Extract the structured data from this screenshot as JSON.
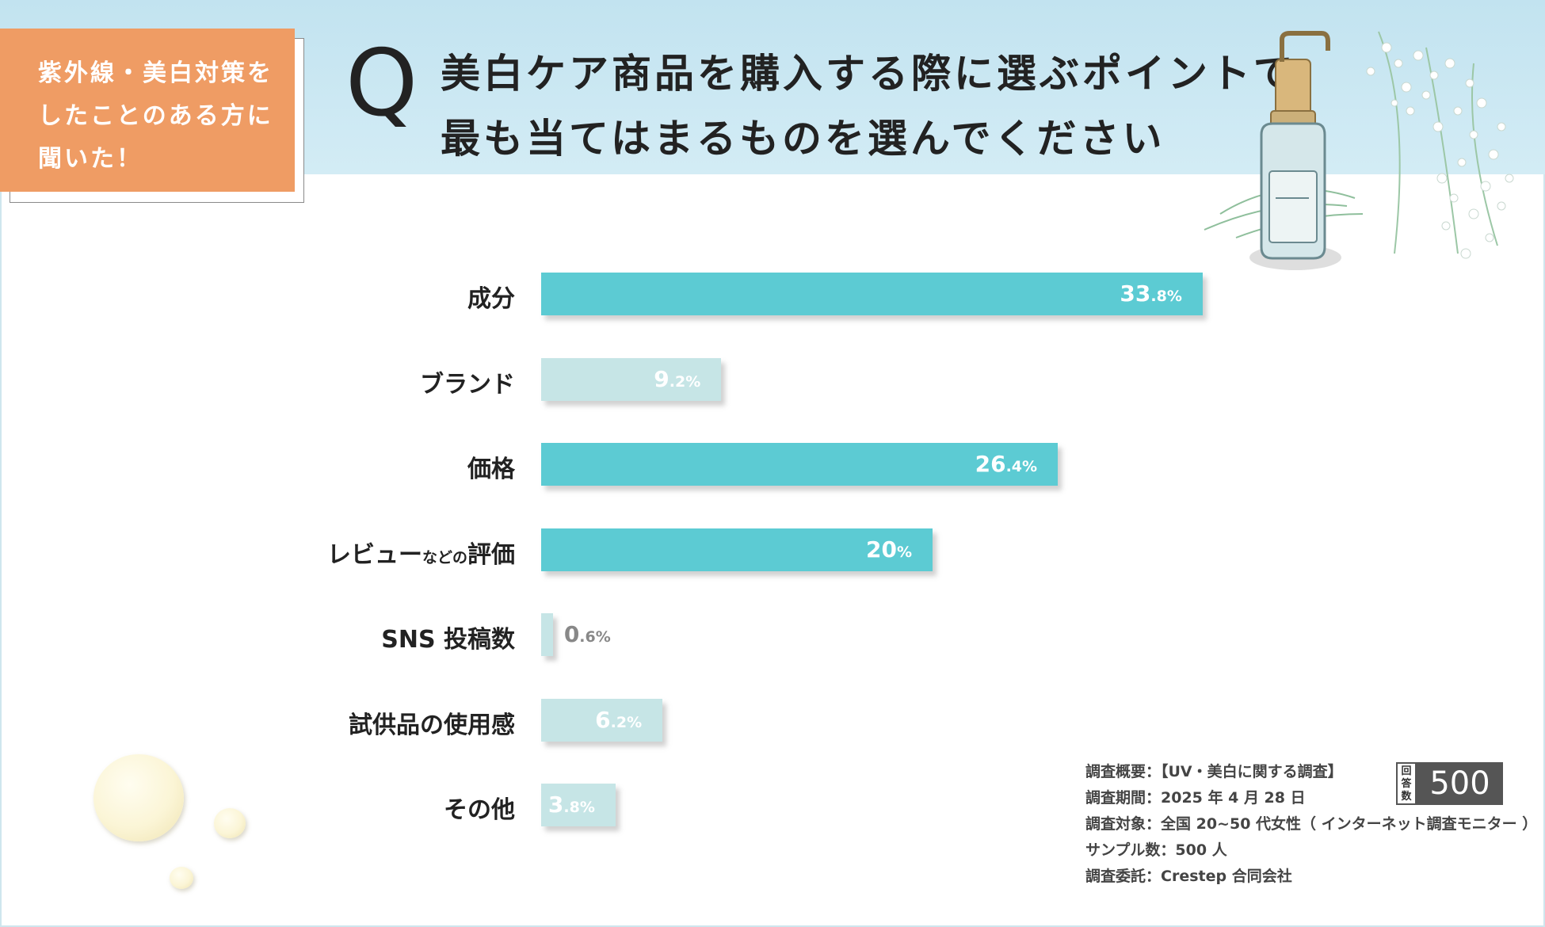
{
  "tag": {
    "lines": [
      "紫外線・美白対策を",
      "したことのある方に",
      "聞いた！"
    ]
  },
  "question": {
    "letter": "Q",
    "line1": "美白ケア商品を購入する際に選ぶポイントで",
    "line2": "最も当てはまるものを選んでください"
  },
  "colors": {
    "bar_high": "#5ccbd3",
    "bar_low": "#c6e5e6",
    "tag_bg": "#ef9c64",
    "header_bg": "#c8e6f2"
  },
  "chart_data": {
    "type": "bar",
    "orientation": "horizontal",
    "categories": [
      "成分",
      "ブランド",
      "価格",
      "レビューなどの評価",
      "SNS 投稿数",
      "試供品の使用感",
      "その他"
    ],
    "category_display": [
      {
        "main": "成分",
        "small": "",
        "tail": ""
      },
      {
        "main": "ブランド",
        "small": "",
        "tail": ""
      },
      {
        "main": "価格",
        "small": "",
        "tail": ""
      },
      {
        "main": "レビュー",
        "small": "などの",
        "tail": "評価"
      },
      {
        "main": "SNS 投稿数",
        "small": "",
        "tail": ""
      },
      {
        "main": "試供品の使用感",
        "small": "",
        "tail": ""
      },
      {
        "main": "その他",
        "small": "",
        "tail": ""
      }
    ],
    "values": [
      33.8,
      9.2,
      26.4,
      20,
      0.6,
      6.2,
      3.8
    ],
    "value_labels": [
      {
        "int": "33",
        "dec": ".8%"
      },
      {
        "int": "9",
        "dec": ".2%"
      },
      {
        "int": "26",
        "dec": ".4%"
      },
      {
        "int": "20",
        "dec": "%"
      },
      {
        "int": "0",
        "dec": ".6%"
      },
      {
        "int": "6",
        "dec": ".2%"
      },
      {
        "int": "3",
        "dec": ".8%"
      }
    ],
    "unit": "%",
    "xlim": [
      0,
      50
    ],
    "highlighted": [
      true,
      false,
      true,
      true,
      false,
      false,
      false
    ],
    "grid": false,
    "legend": "none"
  },
  "survey": {
    "overview": "調査概要：【UV・美白に関する調査】",
    "period": "調査期間：2025 年 4 月 28 日",
    "target": "調査対象：全国 20~50 代女性（ インターネット調査モニター ）",
    "sample": "サンプル数：500 人",
    "client": "調査委託：Crestep 合同会社"
  },
  "responses": {
    "label_chars": [
      "回",
      "答",
      "数"
    ],
    "count": "500"
  }
}
